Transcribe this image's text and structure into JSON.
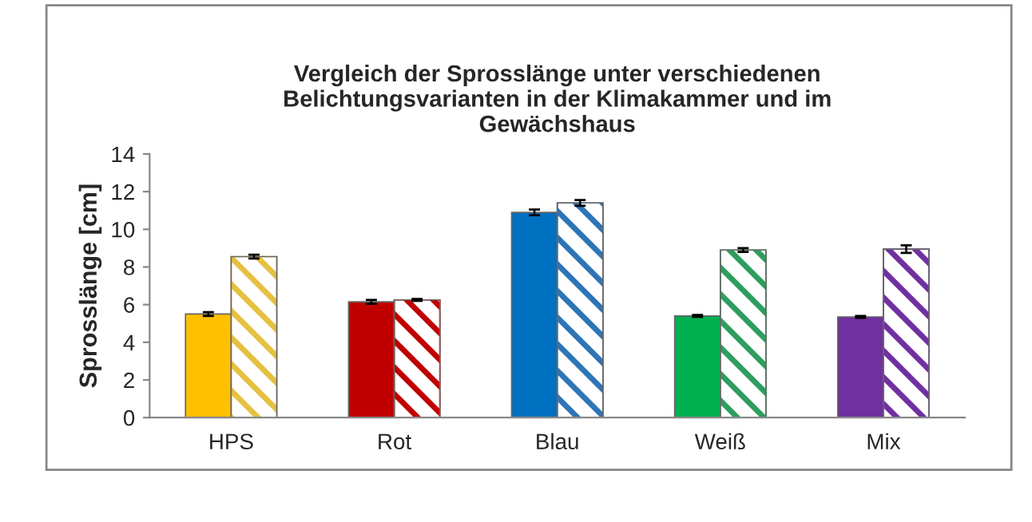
{
  "chart_data": {
    "type": "bar",
    "title": "Vergleich der Sprosslänge unter verschiedenen\nBelichtungsvarianten in der Klimakammer und im\nGewächshaus",
    "ylabel": "Sprosslänge [cm]",
    "categories": [
      "HPS",
      "Rot",
      "Blau",
      "Weiß",
      "Mix"
    ],
    "series": [
      {
        "colors": [
          "#ffc000",
          "#c00000",
          "#0070c0",
          "#00b050",
          "#7030a0"
        ],
        "values": [
          5.5,
          6.15,
          10.9,
          5.4,
          5.35
        ],
        "errors": [
          0.1,
          0.1,
          0.15,
          0.05,
          0.05
        ]
      },
      {
        "colors": [
          "#e6c040",
          "#c00000",
          "#2e75b6",
          "#2e9e5e",
          "#7030a0"
        ],
        "values": [
          8.55,
          6.25,
          11.4,
          8.9,
          8.95
        ],
        "errors": [
          0.1,
          0.05,
          0.15,
          0.1,
          0.2
        ]
      }
    ],
    "ylim": [
      0,
      14
    ],
    "yticks": [
      0,
      2,
      4,
      6,
      8,
      10,
      12,
      14
    ],
    "grid": false,
    "legend": false
  }
}
